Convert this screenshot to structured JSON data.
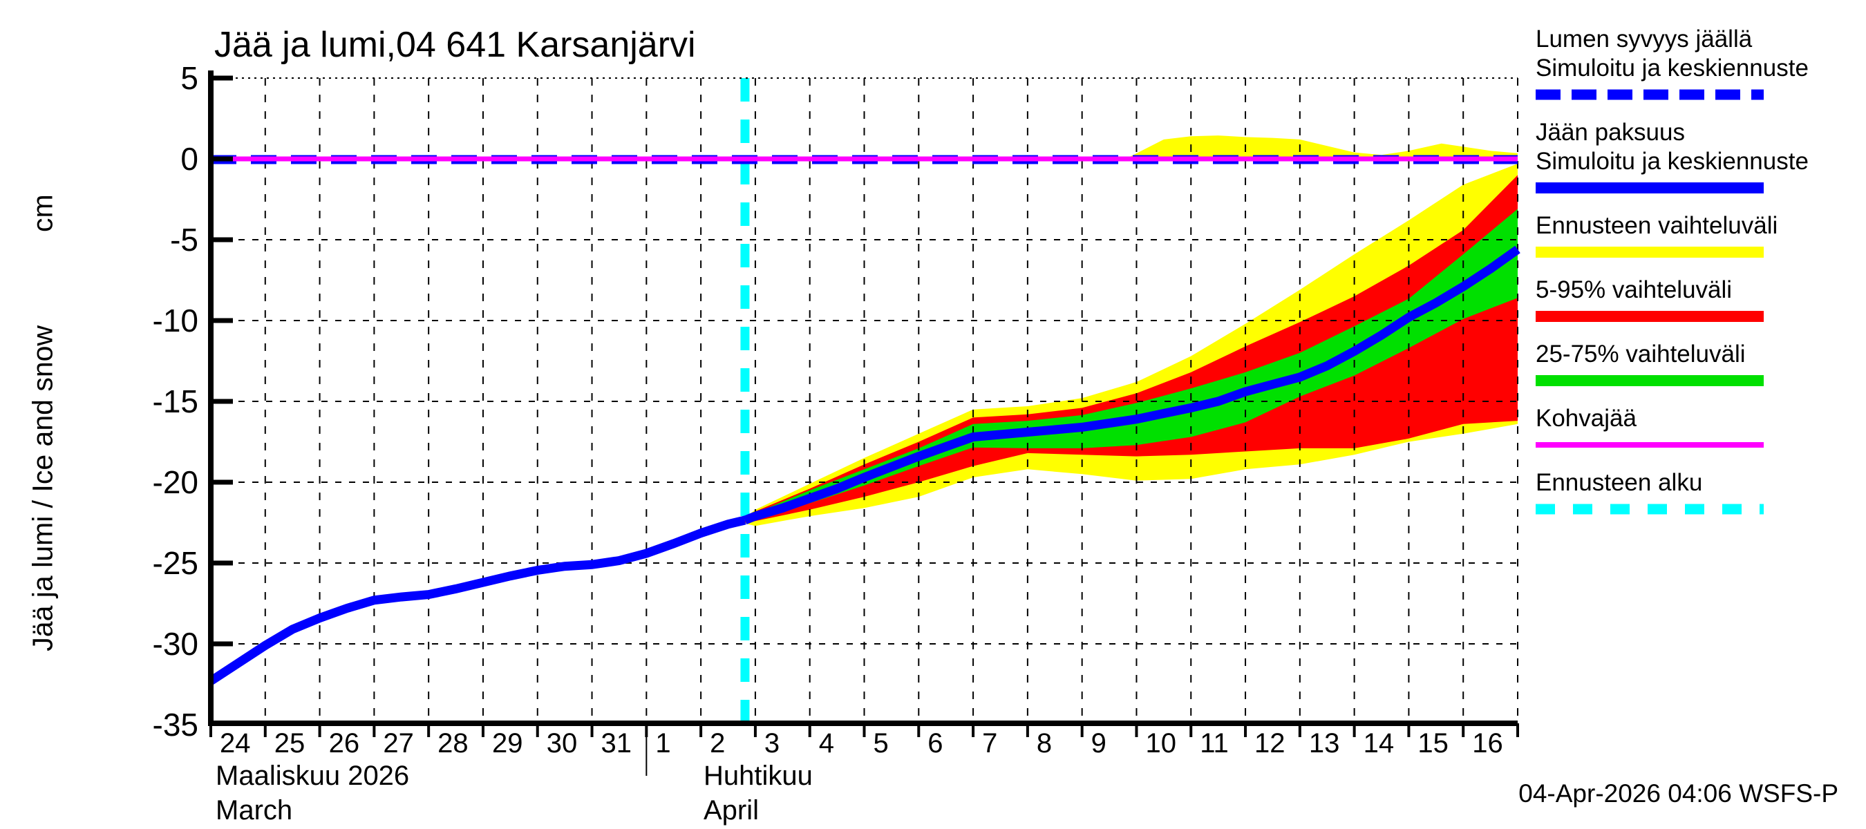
{
  "title": "Jää ja lumi,04 641 Karsanjärvi",
  "footer": "04-Apr-2026 04:06 WSFS-P",
  "colors": {
    "ice_line": "#0000ff",
    "snow_line": "#0000ff",
    "range_minmax": "#ffff00",
    "range_5_95": "#ff0000",
    "range_25_75": "#00e000",
    "kohvajaa": "#ff00ff",
    "forecast_start": "#00ffff",
    "grid": "#000000"
  },
  "y_axis": {
    "label": "Jää ja lumi / Ice and snow",
    "unit": "cm",
    "tick_labels": [
      "5",
      "0",
      "-5",
      "-10",
      "-15",
      "-20",
      "-25",
      "-30",
      "-35"
    ],
    "tick_values": [
      5,
      0,
      -5,
      -10,
      -15,
      -20,
      -25,
      -30,
      -35
    ]
  },
  "x_axis": {
    "march_day_labels": [
      "24",
      "25",
      "26",
      "27",
      "28",
      "29",
      "30",
      "31"
    ],
    "april_day_labels": [
      "1",
      "2",
      "3",
      "4",
      "5",
      "6",
      "7",
      "8",
      "9",
      "10",
      "11",
      "12",
      "13",
      "14",
      "15",
      "16"
    ],
    "month_left_fi": "Maaliskuu 2026",
    "month_left_en": "March",
    "month_right_fi": "Huhtikuu",
    "month_right_en": "April"
  },
  "legend": {
    "items": [
      {
        "lines": [
          "Lumen syvyys jäällä",
          "Simuloitu ja keskiennuste"
        ],
        "swatch": "dashed",
        "color": "#0000ff",
        "thickness": 15,
        "dash": "36 16"
      },
      {
        "lines": [
          "Jään paksuus",
          "Simuloitu ja keskiennuste"
        ],
        "swatch": "solid",
        "color": "#0000ff",
        "thickness": 16,
        "dash": ""
      },
      {
        "lines": [
          "Ennusteen vaihteluväli"
        ],
        "swatch": "solid",
        "color": "#ffff00",
        "thickness": 16,
        "dash": ""
      },
      {
        "lines": [
          "5-95% vaihteluväli"
        ],
        "swatch": "solid",
        "color": "#ff0000",
        "thickness": 16,
        "dash": ""
      },
      {
        "lines": [
          "25-75% vaihteluväli"
        ],
        "swatch": "solid",
        "color": "#00e000",
        "thickness": 16,
        "dash": ""
      },
      {
        "lines": [
          "Kohvajää"
        ],
        "swatch": "solid",
        "color": "#ff00ff",
        "thickness": 8,
        "dash": ""
      },
      {
        "lines": [
          "Ennusteen alku"
        ],
        "swatch": "dashed",
        "color": "#00ffff",
        "thickness": 15,
        "dash": "28 26"
      }
    ]
  },
  "chart_data": {
    "type": "line",
    "title": "Jää ja lumi,04 641 Karsanjärvi",
    "ylabel": "Jää ja lumi / Ice and snow (cm)",
    "ylim": [
      -35,
      5
    ],
    "xlim_days_from_2026_03_24": [
      0,
      24
    ],
    "grid": true,
    "legend_position": "right-outside",
    "forecast_start_x": 9.81,
    "zero_lines": {
      "snow_depth_on_ice": 0,
      "kohvajaa": 0
    },
    "ice_thickness_simulated_history": [
      [
        0,
        -32.3
      ],
      [
        0.5,
        -31.2
      ],
      [
        1,
        -30.1
      ],
      [
        1.5,
        -29.1
      ],
      [
        2,
        -28.4
      ],
      [
        2.5,
        -27.8
      ],
      [
        3,
        -27.3
      ],
      [
        3.5,
        -27.1
      ],
      [
        4,
        -26.95
      ],
      [
        4.5,
        -26.6
      ],
      [
        5,
        -26.2
      ],
      [
        5.5,
        -25.8
      ],
      [
        6,
        -25.45
      ],
      [
        6.5,
        -25.2
      ],
      [
        7,
        -25.1
      ],
      [
        7.5,
        -24.85
      ],
      [
        8,
        -24.4
      ],
      [
        8.5,
        -23.8
      ],
      [
        9,
        -23.15
      ],
      [
        9.5,
        -22.6
      ],
      [
        9.81,
        -22.35
      ]
    ],
    "ice_thickness_median_forecast": [
      [
        9.81,
        -22.35
      ],
      [
        10,
        -22.1
      ],
      [
        10.5,
        -21.6
      ],
      [
        11,
        -21.0
      ],
      [
        11.5,
        -20.4
      ],
      [
        12,
        -19.7
      ],
      [
        12.5,
        -19.05
      ],
      [
        13,
        -18.4
      ],
      [
        13.5,
        -17.8
      ],
      [
        14,
        -17.2
      ],
      [
        14.5,
        -17.05
      ],
      [
        15,
        -16.9
      ],
      [
        15.5,
        -16.75
      ],
      [
        16,
        -16.6
      ],
      [
        16.5,
        -16.35
      ],
      [
        17,
        -16.1
      ],
      [
        17.5,
        -15.75
      ],
      [
        18,
        -15.4
      ],
      [
        18.5,
        -15.0
      ],
      [
        19,
        -14.4
      ],
      [
        19.5,
        -13.95
      ],
      [
        20,
        -13.5
      ],
      [
        20.5,
        -12.8
      ],
      [
        21,
        -11.9
      ],
      [
        21.5,
        -10.9
      ],
      [
        22,
        -9.8
      ],
      [
        22.5,
        -8.9
      ],
      [
        23,
        -7.9
      ],
      [
        23.5,
        -6.8
      ],
      [
        24,
        -5.6
      ]
    ],
    "bands": [
      {
        "name": "ennusteen-vaihteluvali-minmax",
        "color": "#ffff00",
        "upper": [
          [
            9.81,
            -22.2
          ],
          [
            10,
            -21.7
          ],
          [
            11,
            -20.1
          ],
          [
            12,
            -18.5
          ],
          [
            13,
            -17.0
          ],
          [
            14,
            -15.5
          ],
          [
            15,
            -15.3
          ],
          [
            16,
            -14.8
          ],
          [
            17,
            -13.8
          ],
          [
            18,
            -12.2
          ],
          [
            19,
            -10.2
          ],
          [
            20,
            -8.1
          ],
          [
            21,
            -5.9
          ],
          [
            22,
            -3.8
          ],
          [
            23,
            -1.6
          ],
          [
            24,
            -0.3
          ]
        ],
        "lower": [
          [
            9.81,
            -22.55
          ],
          [
            10,
            -22.7
          ],
          [
            11,
            -22.1
          ],
          [
            12,
            -21.6
          ],
          [
            13,
            -20.9
          ],
          [
            14,
            -19.7
          ],
          [
            15,
            -19.2
          ],
          [
            16,
            -19.5
          ],
          [
            17,
            -19.9
          ],
          [
            18,
            -19.8
          ],
          [
            19,
            -19.2
          ],
          [
            20,
            -18.9
          ],
          [
            21,
            -18.3
          ],
          [
            22,
            -17.5
          ],
          [
            23,
            -17.0
          ],
          [
            24,
            -16.4
          ]
        ]
      },
      {
        "name": "vaihteluvali-5-95",
        "color": "#ff0000",
        "upper": [
          [
            9.81,
            -22.25
          ],
          [
            10,
            -21.8
          ],
          [
            11,
            -20.4
          ],
          [
            12,
            -18.9
          ],
          [
            13,
            -17.5
          ],
          [
            14,
            -16.0
          ],
          [
            15,
            -15.8
          ],
          [
            16,
            -15.4
          ],
          [
            17,
            -14.5
          ],
          [
            18,
            -13.2
          ],
          [
            19,
            -11.6
          ],
          [
            20,
            -10.1
          ],
          [
            21,
            -8.5
          ],
          [
            22,
            -6.6
          ],
          [
            23,
            -4.4
          ],
          [
            24,
            -1.0
          ]
        ],
        "lower": [
          [
            9.81,
            -22.5
          ],
          [
            10,
            -22.4
          ],
          [
            11,
            -21.7
          ],
          [
            12,
            -20.9
          ],
          [
            13,
            -20.0
          ],
          [
            14,
            -19.0
          ],
          [
            15,
            -18.2
          ],
          [
            16,
            -18.3
          ],
          [
            17,
            -18.4
          ],
          [
            18,
            -18.3
          ],
          [
            19,
            -18.1
          ],
          [
            20,
            -17.9
          ],
          [
            21,
            -17.9
          ],
          [
            22,
            -17.3
          ],
          [
            23,
            -16.4
          ],
          [
            24,
            -16.2
          ]
        ]
      },
      {
        "name": "vaihteluvali-25-75",
        "color": "#00e000",
        "upper": [
          [
            9.81,
            -22.3
          ],
          [
            10,
            -21.9
          ],
          [
            11,
            -20.5
          ],
          [
            12,
            -19.2
          ],
          [
            13,
            -17.9
          ],
          [
            14,
            -16.4
          ],
          [
            15,
            -16.2
          ],
          [
            16,
            -15.85
          ],
          [
            17,
            -15.1
          ],
          [
            18,
            -14.2
          ],
          [
            19,
            -13.2
          ],
          [
            20,
            -12.0
          ],
          [
            21,
            -10.35
          ],
          [
            22,
            -8.65
          ],
          [
            23,
            -5.9
          ],
          [
            24,
            -3.1
          ]
        ],
        "lower": [
          [
            9.81,
            -22.4
          ],
          [
            10,
            -22.2
          ],
          [
            11,
            -21.3
          ],
          [
            12,
            -20.2
          ],
          [
            13,
            -19.0
          ],
          [
            14,
            -17.85
          ],
          [
            15,
            -17.9
          ],
          [
            16,
            -17.9
          ],
          [
            17,
            -17.7
          ],
          [
            18,
            -17.2
          ],
          [
            19,
            -16.3
          ],
          [
            20,
            -14.7
          ],
          [
            21,
            -13.4
          ],
          [
            22,
            -11.7
          ],
          [
            23,
            -9.9
          ],
          [
            24,
            -8.6
          ]
        ]
      },
      {
        "name": "lumen-ennusteen-vaihteluvali",
        "color": "#ffff00",
        "upper": [
          [
            16.8,
            0
          ],
          [
            17.5,
            1.2
          ],
          [
            18,
            1.4
          ],
          [
            18.5,
            1.45
          ],
          [
            19,
            1.35
          ],
          [
            19.5,
            1.3
          ],
          [
            20,
            1.2
          ],
          [
            20.5,
            0.8
          ],
          [
            21,
            0.4
          ],
          [
            21.5,
            0.25
          ],
          [
            22,
            0.5
          ],
          [
            22.6,
            0.95
          ],
          [
            23,
            0.75
          ],
          [
            23.5,
            0.5
          ],
          [
            24,
            0.35
          ]
        ],
        "lower": [
          [
            16.8,
            0
          ],
          [
            24,
            0
          ]
        ]
      }
    ]
  }
}
